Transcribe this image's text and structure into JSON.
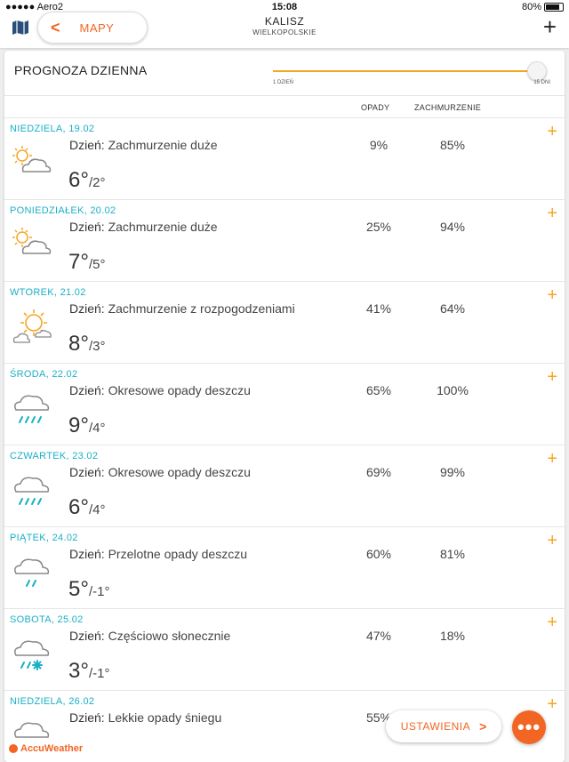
{
  "status": {
    "carrier": "●●●●● Aero2",
    "time": "15:08",
    "battery": "80%"
  },
  "header": {
    "back_label": "MAPY",
    "city": "KALISZ",
    "region": "WIELKOPOLSKIE"
  },
  "forecast": {
    "title": "PROGNOZA DZIENNA",
    "slider": {
      "min_label": "1 DZIEŃ",
      "max_label": "15 DNI",
      "value_fraction": 1.0
    },
    "col_precip": "OPADY",
    "col_cloud": "ZACHMURZENIE",
    "day_prefix": "Dzień:",
    "days": [
      {
        "date": "NIEDZIELA, 19.02",
        "icon": "partly-cloudy-sun-icon",
        "desc": "Zachmurzenie duże",
        "hi": "6°",
        "lo": "/2°",
        "precip": "9%",
        "cloud": "85%"
      },
      {
        "date": "PONIEDZIAŁEK, 20.02",
        "icon": "partly-cloudy-sun-icon",
        "desc": "Zachmurzenie duże",
        "hi": "7°",
        "lo": "/5°",
        "precip": "25%",
        "cloud": "94%"
      },
      {
        "date": "WTOREK, 21.02",
        "icon": "sun-with-clouds-icon",
        "desc": "Zachmurzenie z rozpogodzeniami",
        "hi": "8°",
        "lo": "/3°",
        "precip": "41%",
        "cloud": "64%"
      },
      {
        "date": "ŚRODA, 22.02",
        "icon": "heavy-rain-icon",
        "desc": "Okresowe opady deszczu",
        "hi": "9°",
        "lo": "/4°",
        "precip": "65%",
        "cloud": "100%"
      },
      {
        "date": "CZWARTEK, 23.02",
        "icon": "heavy-rain-icon",
        "desc": "Okresowe opady deszczu",
        "hi": "6°",
        "lo": "/4°",
        "precip": "69%",
        "cloud": "99%"
      },
      {
        "date": "PIĄTEK, 24.02",
        "icon": "showers-icon",
        "desc": "Przelotne opady deszczu",
        "hi": "5°",
        "lo": "/-1°",
        "precip": "60%",
        "cloud": "81%"
      },
      {
        "date": "SOBOTA, 25.02",
        "icon": "rain-snow-icon",
        "desc": "Częściowo słonecznie",
        "hi": "3°",
        "lo": "/-1°",
        "precip": "47%",
        "cloud": "18%"
      },
      {
        "date": "NIEDZIELA, 26.02",
        "icon": "cloud-icon",
        "desc": "Lekkie opady śniegu",
        "hi": "",
        "lo": "",
        "precip": "55%",
        "cloud": ""
      }
    ]
  },
  "footer": {
    "brand": "AccuWeather",
    "settings_label": "USTAWIENIA",
    "more_label": "•••"
  },
  "colors": {
    "accent": "#f26522",
    "date": "#1ab0c7",
    "plus": "#f5a623"
  }
}
